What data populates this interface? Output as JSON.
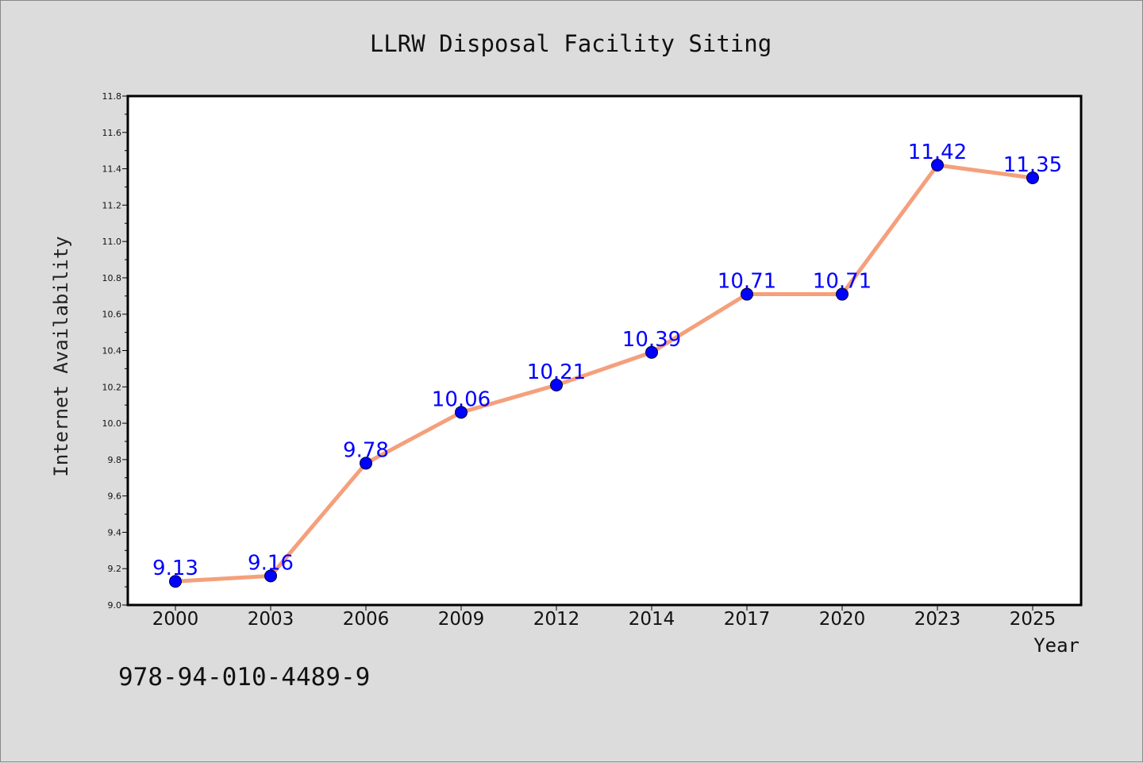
{
  "chart_data": {
    "type": "line",
    "title": "LLRW Disposal Facility Siting",
    "xlabel": "Year",
    "ylabel": "Internet Availability",
    "categories": [
      "2000",
      "2003",
      "2006",
      "2009",
      "2012",
      "2014",
      "2017",
      "2020",
      "2023",
      "2025"
    ],
    "series": [
      {
        "values": [
          9.13,
          9.16,
          9.78,
          10.06,
          10.21,
          10.39,
          10.71,
          10.71,
          11.42,
          11.35
        ],
        "data_labels": [
          "9.13",
          "9.16",
          "9.78",
          "10.06",
          "10.21",
          "10.39",
          "10.71",
          "10.71",
          "11.42",
          "11.35"
        ]
      }
    ],
    "ylim": [
      9.0,
      11.8
    ],
    "yticks": [
      "9.0",
      "9.2",
      "9.4",
      "9.6",
      "9.8",
      "10.0",
      "10.2",
      "10.4",
      "10.6",
      "10.8",
      "11.0",
      "11.2",
      "11.4",
      "11.6",
      "11.8"
    ],
    "grid": false,
    "colors": {
      "line": "#f4a07c",
      "marker": "#0000ff",
      "marker_edge": "#000033",
      "label": "#0000ff",
      "background": "#dcdcdc",
      "plot_background": "#ffffff"
    }
  },
  "footer": {
    "code": "978-94-010-4489-9"
  }
}
